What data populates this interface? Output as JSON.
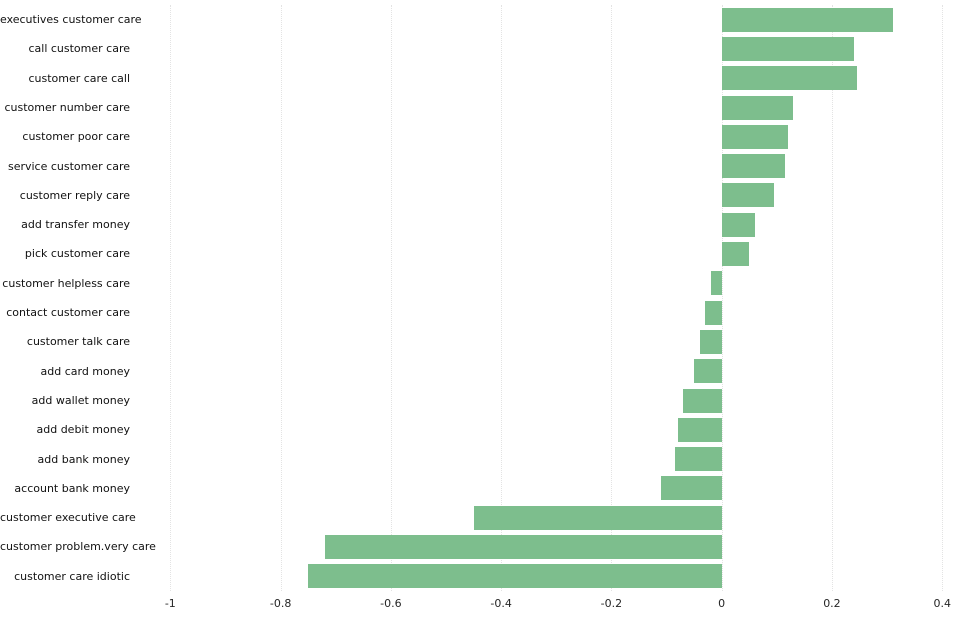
{
  "chart_data": {
    "type": "bar",
    "orientation": "horizontal",
    "title": "",
    "xlabel": "",
    "ylabel": "",
    "bar_color": "#7dbe8d",
    "background": "#ffffff",
    "grid": true,
    "legend": false,
    "xlim": [
      -1.055,
      0.425
    ],
    "xticks": [
      -1,
      -0.8,
      -0.6,
      -0.4,
      -0.2,
      0,
      0.2,
      0.4
    ],
    "xtick_labels": [
      "-1",
      "-0.8",
      "-0.6",
      "-0.4",
      "-0.2",
      "0",
      "0.2",
      "0.4"
    ],
    "categories": [
      "executives customer care",
      "call customer care",
      "customer care call",
      "customer number care",
      "customer poor care",
      "service customer care",
      "customer reply care",
      "add transfer money",
      "pick customer care",
      "customer helpless care",
      "contact customer care",
      "customer talk care",
      "add card money",
      "add wallet money",
      "add debit money",
      "add bank money",
      "account bank money",
      "customer executive care",
      "customer problem.very care",
      "customer care idiotic"
    ],
    "values": [
      0.31,
      0.24,
      0.245,
      0.13,
      0.12,
      0.115,
      0.095,
      0.06,
      0.05,
      -0.02,
      -0.03,
      -0.04,
      -0.05,
      -0.07,
      -0.08,
      -0.085,
      -0.11,
      -0.45,
      -0.72,
      -0.75
    ]
  }
}
